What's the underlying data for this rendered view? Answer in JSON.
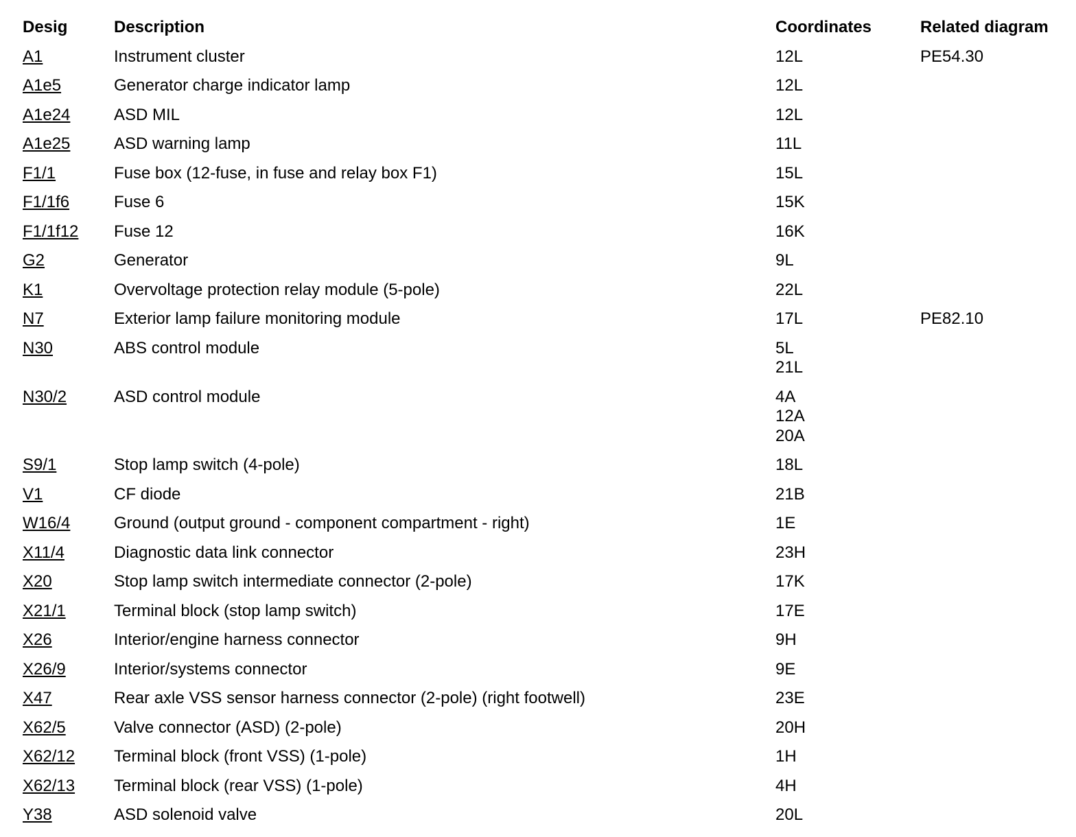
{
  "table": {
    "headers": {
      "desig": "Desig",
      "description": "Description",
      "coordinates": "Coordinates",
      "related": "Related diagram"
    },
    "rows": [
      {
        "desig": "A1",
        "description": "Instrument cluster",
        "coordinates": [
          "12L"
        ],
        "related": "PE54.30"
      },
      {
        "desig": "A1e5",
        "description": "Generator charge indicator lamp",
        "coordinates": [
          "12L"
        ],
        "related": ""
      },
      {
        "desig": "A1e24",
        "description": "ASD MIL",
        "coordinates": [
          "12L"
        ],
        "related": ""
      },
      {
        "desig": "A1e25",
        "description": "ASD warning lamp",
        "coordinates": [
          "11L"
        ],
        "related": ""
      },
      {
        "desig": "F1/1",
        "description": "Fuse box (12-fuse, in fuse and relay box F1)",
        "coordinates": [
          "15L"
        ],
        "related": ""
      },
      {
        "desig": "F1/1f6",
        "description": "Fuse 6",
        "coordinates": [
          "15K"
        ],
        "related": ""
      },
      {
        "desig": "F1/1f12",
        "description": "Fuse 12",
        "coordinates": [
          "16K"
        ],
        "related": ""
      },
      {
        "desig": "G2",
        "description": "Generator",
        "coordinates": [
          "9L"
        ],
        "related": ""
      },
      {
        "desig": "K1",
        "description": "Overvoltage protection relay module (5-pole)",
        "coordinates": [
          "22L"
        ],
        "related": ""
      },
      {
        "desig": "N7",
        "description": "Exterior lamp failure monitoring module",
        "coordinates": [
          "17L"
        ],
        "related": "PE82.10"
      },
      {
        "desig": "N30",
        "description": "ABS control module",
        "coordinates": [
          "5L",
          "21L"
        ],
        "related": ""
      },
      {
        "desig": "N30/2",
        "description": "ASD control module",
        "coordinates": [
          "4A",
          "12A",
          "20A"
        ],
        "related": ""
      },
      {
        "desig": "S9/1",
        "description": "Stop lamp switch (4-pole)",
        "coordinates": [
          "18L"
        ],
        "related": ""
      },
      {
        "desig": "V1",
        "description": "CF diode",
        "coordinates": [
          "21B"
        ],
        "related": ""
      },
      {
        "desig": "W16/4",
        "description": "Ground (output ground - component compartment - right)",
        "coordinates": [
          "1E"
        ],
        "related": ""
      },
      {
        "desig": "X11/4",
        "description": "Diagnostic data link connector",
        "coordinates": [
          "23H"
        ],
        "related": ""
      },
      {
        "desig": "X20",
        "description": "Stop lamp switch intermediate connector (2-pole)",
        "coordinates": [
          "17K"
        ],
        "related": ""
      },
      {
        "desig": "X21/1",
        "description": "Terminal block (stop lamp switch)",
        "coordinates": [
          "17E"
        ],
        "related": ""
      },
      {
        "desig": "X26",
        "description": "Interior/engine harness connector",
        "coordinates": [
          "9H"
        ],
        "related": ""
      },
      {
        "desig": "X26/9",
        "description": "Interior/systems connector",
        "coordinates": [
          "9E"
        ],
        "related": ""
      },
      {
        "desig": "X47",
        "description": "Rear axle VSS sensor harness connector (2-pole) (right footwell)",
        "coordinates": [
          "23E"
        ],
        "related": ""
      },
      {
        "desig": "X62/5",
        "description": "Valve connector (ASD) (2-pole)",
        "coordinates": [
          "20H"
        ],
        "related": ""
      },
      {
        "desig": "X62/12",
        "description": "Terminal block (front VSS) (1-pole)",
        "coordinates": [
          "1H"
        ],
        "related": ""
      },
      {
        "desig": "X62/13",
        "description": "Terminal block (rear VSS) (1-pole)",
        "coordinates": [
          "4H"
        ],
        "related": ""
      },
      {
        "desig": "Y38",
        "description": "ASD solenoid valve",
        "coordinates": [
          "20L"
        ],
        "related": ""
      }
    ]
  }
}
